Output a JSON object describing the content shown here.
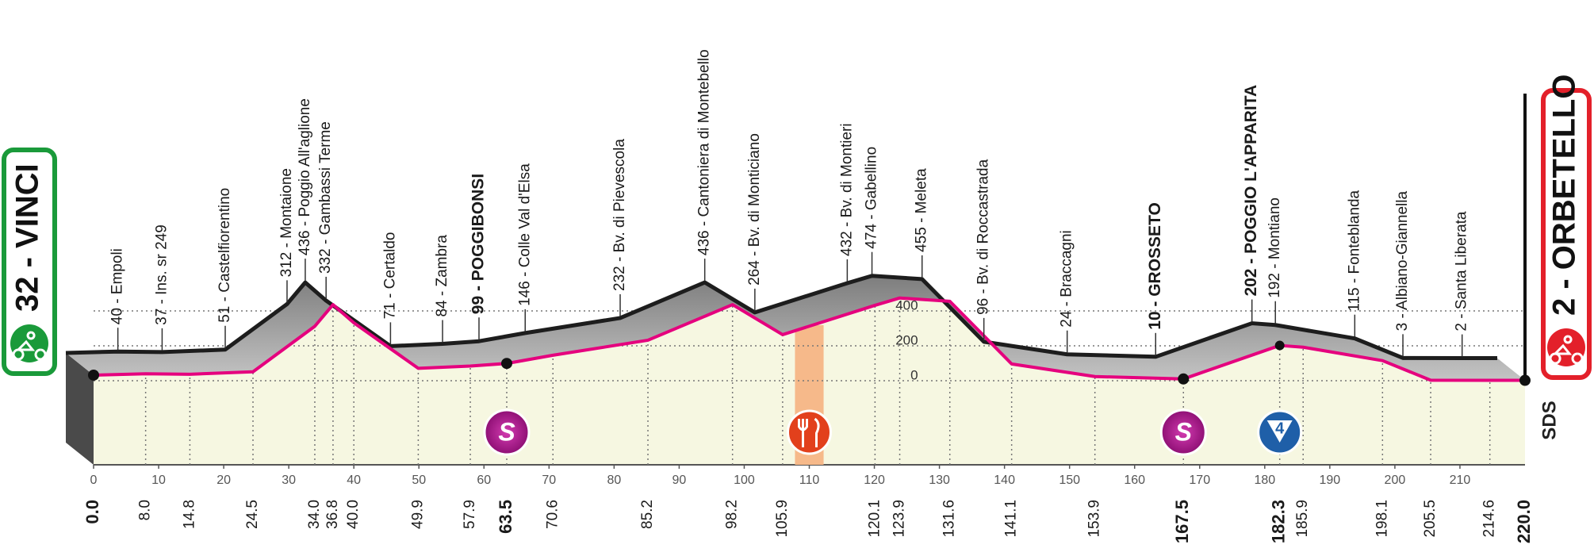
{
  "chart_data": {
    "type": "elevation-profile",
    "xlim": [
      0,
      220
    ],
    "xticks": [
      0,
      10,
      20,
      30,
      40,
      50,
      60,
      70,
      80,
      90,
      100,
      110,
      120,
      130,
      140,
      150,
      160,
      170,
      180,
      190,
      200,
      210
    ],
    "ylim": [
      0,
      600
    ],
    "yticks": [
      0,
      200,
      400
    ],
    "grid": true,
    "line_color": "#e5007e",
    "start": {
      "label": "32 - VINCI",
      "altitude": 32,
      "km": {
        "value": 0,
        "label": "0.0"
      },
      "color": "#1a9a3a"
    },
    "finish": {
      "label": "2 - ORBETELLO",
      "altitude": 2,
      "km": {
        "value": 220,
        "label": "220.0"
      },
      "color": "#e3202a"
    },
    "waypoints": [
      {
        "label": "40 - Empoli",
        "altitude": 40,
        "km": {
          "value": 8,
          "label": "8.0"
        }
      },
      {
        "label": "37 - Ins. sr 249",
        "altitude": 37,
        "km": 14.8
      },
      {
        "label": "51 - Castelfiorentino",
        "altitude": 51,
        "km": 24.5
      },
      {
        "label": "312 - Montaione",
        "altitude": 312,
        "km": {
          "value": 34,
          "label": "34.0"
        }
      },
      {
        "label": "436 - Poggio All'aglione",
        "altitude": 436,
        "km": 36.8
      },
      {
        "label": "332 - Gambassi Terme",
        "altitude": 332,
        "km": {
          "value": 40,
          "label": "40.0"
        }
      },
      {
        "label": "71 - Certaldo",
        "altitude": 71,
        "km": 49.9
      },
      {
        "label": "84 - Zambra",
        "altitude": 84,
        "km": 57.9
      },
      {
        "label": "99 - POGGIBONSI",
        "altitude": 99,
        "km": 63.5,
        "bold": true
      },
      {
        "label": "146 - Colle Val d'Elsa",
        "altitude": 146,
        "km": 70.6
      },
      {
        "label": "232 - Bv. di Pievescola",
        "altitude": 232,
        "km": 85.2
      },
      {
        "label": "436 - Cantoniera di Montebello",
        "altitude": 436,
        "km": 98.2
      },
      {
        "label": "264 - Bv. di Monticiano",
        "altitude": 264,
        "km": 105.9
      },
      {
        "label": "432 - Bv. di Montieri",
        "altitude": 432,
        "km": 120.1
      },
      {
        "label": "474 - Gabellino",
        "altitude": 474,
        "km": 123.9
      },
      {
        "label": "455 - Meleta",
        "altitude": 455,
        "km": 131.6
      },
      {
        "label": "96 - Bv. di Roccastrada",
        "altitude": 96,
        "km": 141.1
      },
      {
        "label": "24 - Braccagni",
        "altitude": 24,
        "km": 153.9
      },
      {
        "label": "10 - GROSSETO",
        "altitude": 10,
        "km": 167.5,
        "bold": true
      },
      {
        "label": "202 - POGGIO L'APPARITA",
        "altitude": 202,
        "km": 182.3,
        "bold": true
      },
      {
        "label": "192 - Montiano",
        "altitude": 192,
        "km": 185.9
      },
      {
        "label": "115 - Fonteblanda",
        "altitude": 115,
        "km": 198.1
      },
      {
        "label": "3 - Albiano-Giannella",
        "altitude": 3,
        "km": 205.5
      },
      {
        "label": "2 - Santa Liberata",
        "altitude": 2,
        "km": 214.6
      }
    ],
    "sprints": [
      {
        "km": 63.5,
        "symbol": "S"
      },
      {
        "km": 167.5,
        "symbol": "S"
      }
    ],
    "kom": {
      "km": 182.3,
      "category": 4
    },
    "feed_zone": [
      107.8,
      112.2
    ],
    "logo": "SDS"
  }
}
